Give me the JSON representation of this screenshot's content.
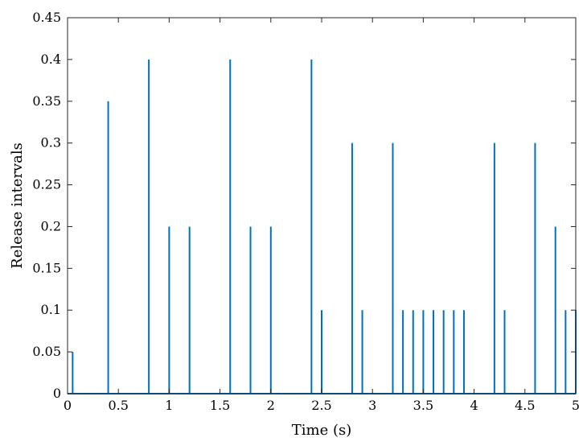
{
  "chart_data": {
    "type": "stem",
    "xlabel": "Time (s)",
    "ylabel": "Release intervals",
    "xlim": [
      0,
      5
    ],
    "ylim": [
      0,
      0.45
    ],
    "x_ticks": [
      0,
      0.5,
      1,
      1.5,
      2,
      2.5,
      3,
      3.5,
      4,
      4.5,
      5
    ],
    "x_tick_labels": [
      "0",
      "0.5",
      "1",
      "1.5",
      "2",
      "2.5",
      "3",
      "3.5",
      "4",
      "4.5",
      "5"
    ],
    "y_ticks": [
      0,
      0.05,
      0.1,
      0.15,
      0.2,
      0.25,
      0.3,
      0.35,
      0.4,
      0.45
    ],
    "y_tick_labels": [
      "0",
      "0.05",
      "0.1",
      "0.15",
      "0.2",
      "0.25",
      "0.3",
      "0.35",
      "0.4",
      "0.45"
    ],
    "grid": false,
    "line_color": "#0072BD",
    "x": [
      0.05,
      0.4,
      0.8,
      1.0,
      1.2,
      1.6,
      1.8,
      2.0,
      2.4,
      2.5,
      2.8,
      2.9,
      3.2,
      3.3,
      3.4,
      3.5,
      3.6,
      3.7,
      3.8,
      3.9,
      4.2,
      4.3,
      4.6,
      4.8,
      4.9,
      5.0
    ],
    "y": [
      0.05,
      0.35,
      0.4,
      0.2,
      0.2,
      0.4,
      0.2,
      0.2,
      0.4,
      0.1,
      0.3,
      0.1,
      0.3,
      0.1,
      0.1,
      0.1,
      0.1,
      0.1,
      0.1,
      0.1,
      0.3,
      0.1,
      0.3,
      0.2,
      0.1,
      0.1
    ]
  }
}
